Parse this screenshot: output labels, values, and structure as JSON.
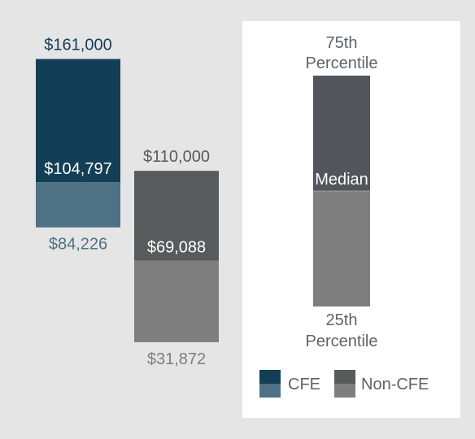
{
  "chart_data": {
    "type": "bar",
    "title": "",
    "xlabel": "",
    "ylabel": "",
    "subtype": "floating range bars (25th percentile to 75th percentile, split at median)",
    "series": [
      {
        "name": "CFE",
        "p25": 84226,
        "median": 104797,
        "p75": 161000,
        "labels": {
          "p25": "$84,226",
          "median": "$104,797",
          "p75": "$161,000"
        },
        "color_upper": "#123f56",
        "color_lower": "#4f7185",
        "color_p75_label": "#123f56",
        "color_median_label": "#ffffff",
        "color_p25_label": "#4f7185"
      },
      {
        "name": "Non-CFE",
        "p25": 31872,
        "median": 69088,
        "p75": 110000,
        "labels": {
          "p25": "$31,872",
          "median": "$69,088",
          "p75": "$110,000"
        },
        "color_upper": "#595a5c",
        "color_lower": "#7e7e7e",
        "color_p75_label": "#595a5c",
        "color_median_label": "#ffffff",
        "color_p25_label": "#7e7e7e"
      }
    ],
    "legend": {
      "position": "right panel",
      "p75_label": [
        "75th",
        "Percentile"
      ],
      "median_label": "Median",
      "p25_label": [
        "25th",
        "Percentile"
      ],
      "key_upper_colors": [
        "#123f56",
        "#595a5c"
      ],
      "key_lower_colors": [
        "#4f7185",
        "#7e7e7e"
      ],
      "sample_upper_color": "#52555c",
      "sample_lower_color": "#7e7e7e",
      "text_color": "#5f6368",
      "series_labels": [
        "CFE",
        "Non-CFE"
      ]
    }
  }
}
